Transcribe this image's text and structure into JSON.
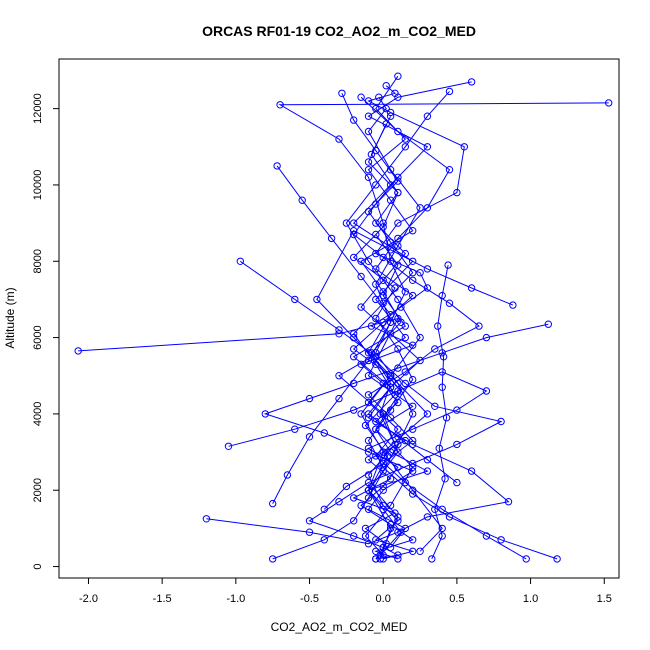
{
  "chart_data": {
    "type": "line",
    "title": "ORCAS RF01-19 CO2_AO2_m_CO2_MED",
    "xlabel": "CO2_AO2_m_CO2_MED",
    "ylabel": "Altitude (m)",
    "xlim": [
      -2.2,
      1.6
    ],
    "ylim": [
      -300,
      13300
    ],
    "x_ticks": [
      -2.0,
      -1.5,
      -1.0,
      -0.5,
      0.0,
      0.5,
      1.0,
      1.5
    ],
    "x_tick_labels": [
      "-2.0",
      "-1.5",
      "-1.0",
      "-0.5",
      "0.0",
      "0.5",
      "1.0",
      "1.5"
    ],
    "y_ticks": [
      0,
      2000,
      4000,
      6000,
      8000,
      10000,
      12000
    ],
    "y_tick_labels": [
      "0",
      "2000",
      "4000",
      "6000",
      "8000",
      "10000",
      "12000"
    ],
    "marker": "open-circle",
    "color": "#0000ff",
    "grid": false,
    "legend": "none",
    "series": [
      {
        "x": [
          -0.05,
          0.02,
          -0.12,
          0.08,
          -0.2,
          0.05,
          -0.1,
          0.15,
          -0.05,
          0.1,
          0.0,
          -0.15,
          0.2,
          -0.08,
          0.12,
          0.3,
          0.25,
          -0.05,
          0.1,
          0.5,
          0.55,
          0.05,
          -0.1,
          0.08,
          0.02
        ],
        "y": [
          200,
          600,
          1000,
          1400,
          1800,
          2300,
          2800,
          3300,
          3800,
          4300,
          4800,
          5300,
          5800,
          6300,
          6800,
          7300,
          7700,
          8200,
          9000,
          9800,
          11000,
          11900,
          12200,
          12400,
          12600
        ]
      },
      {
        "x": [
          0.6,
          0.1,
          -0.1,
          0.3,
          0.05,
          -0.2,
          0.2,
          -0.05,
          0.15,
          -0.3,
          0.0,
          0.1,
          -0.1,
          0.05,
          -0.02
        ],
        "y": [
          12700,
          12300,
          11800,
          11000,
          10000,
          9000,
          8000,
          7000,
          6000,
          5000,
          4000,
          3000,
          2000,
          1000,
          200
        ]
      },
      {
        "x": [
          -0.75,
          -0.4,
          -0.2,
          -0.1,
          0.0,
          0.1,
          0.2,
          0.1,
          -0.05,
          0.05,
          0.15,
          0.05,
          0.0,
          -0.1,
          -0.3,
          -0.7,
          1.53
        ],
        "y": [
          200,
          700,
          1200,
          1800,
          2500,
          3200,
          4000,
          4800,
          5600,
          6400,
          7200,
          8000,
          9000,
          10200,
          11200,
          12100,
          12150
        ]
      },
      {
        "x": [
          1.18,
          0.8,
          0.45,
          0.2,
          0.0,
          -0.1,
          0.05,
          0.2,
          0.1,
          -0.05,
          0.08,
          -0.2,
          0.0,
          0.1,
          -0.08,
          0.05
        ],
        "y": [
          200,
          700,
          1300,
          1900,
          2600,
          3300,
          4100,
          4900,
          5700,
          6500,
          7300,
          8100,
          8900,
          9800,
          10800,
          11800
        ]
      },
      {
        "x": [
          -2.07,
          -0.3,
          0.1,
          -0.1,
          0.2,
          -0.05,
          0.05,
          0.3,
          -0.1,
          0.0,
          0.12,
          -0.02
        ],
        "y": [
          5650,
          6100,
          6500,
          5000,
          4200,
          3600,
          3000,
          2500,
          2000,
          1500,
          900,
          300
        ]
      },
      {
        "x": [
          -1.2,
          -0.5,
          -0.1,
          0.1,
          0.3,
          0.85,
          0.6,
          0.2,
          -0.1,
          0.05,
          -0.2,
          0.15,
          0.0,
          0.1,
          -0.05
        ],
        "y": [
          1250,
          900,
          600,
          900,
          1300,
          1700,
          2500,
          3200,
          3900,
          4700,
          5500,
          6300,
          7100,
          7900,
          8700
        ]
      },
      {
        "x": [
          -1.05,
          -0.6,
          -0.2,
          0.1,
          0.4,
          0.7,
          0.5,
          0.2,
          -0.1,
          0.1,
          0.0,
          -0.15,
          0.05,
          0.2,
          -0.05,
          0.1
        ],
        "y": [
          3150,
          3600,
          4100,
          4600,
          5100,
          4600,
          4100,
          3600,
          3100,
          2600,
          2100,
          1600,
          1100,
          700,
          400,
          200
        ]
      },
      {
        "x": [
          -0.97,
          -0.6,
          -0.3,
          -0.05,
          0.15,
          0.35,
          0.8,
          0.5,
          0.2,
          -0.1,
          -0.3,
          -0.5,
          -0.2,
          0.0,
          0.1,
          -0.05
        ],
        "y": [
          8000,
          7000,
          6200,
          5500,
          4800,
          4200,
          3800,
          3200,
          2700,
          2200,
          1700,
          1200,
          800,
          500,
          300,
          200
        ]
      },
      {
        "x": [
          1.12,
          0.7,
          0.4,
          0.1,
          -0.2,
          -0.5,
          -0.8,
          -0.4,
          -0.1,
          0.2,
          0.0,
          -0.1,
          0.15,
          0.05
        ],
        "y": [
          6350,
          6000,
          5600,
          5200,
          4800,
          4400,
          4000,
          3500,
          3000,
          2500,
          2000,
          1500,
          1000,
          500
        ]
      },
      {
        "x": [
          0.97,
          0.7,
          0.4,
          0.15,
          -0.05,
          0.1,
          -0.1,
          0.05,
          -0.2,
          0.0,
          0.2,
          -0.05,
          0.1,
          0.3,
          0.45,
          0.1,
          -0.15
        ],
        "y": [
          200,
          800,
          1500,
          2200,
          2900,
          3600,
          4300,
          5000,
          5700,
          6400,
          7100,
          7800,
          8600,
          9400,
          10400,
          11400,
          12300
        ]
      },
      {
        "x": [
          0.88,
          0.6,
          0.3,
          0.05,
          -0.2,
          -0.45,
          -0.2,
          0.05,
          0.3,
          0.0,
          -0.1,
          0.1,
          -0.05,
          0.2,
          0.0
        ],
        "y": [
          6850,
          7300,
          7800,
          8300,
          8800,
          7000,
          6000,
          5000,
          4000,
          3000,
          2000,
          1200,
          700,
          400,
          200
        ]
      },
      {
        "x": [
          -0.75,
          -0.65,
          -0.5,
          -0.3,
          -0.1,
          0.05,
          -0.05,
          0.1,
          0.25,
          0.05,
          -0.1,
          0.02,
          -0.03
        ],
        "y": [
          1650,
          2400,
          3400,
          4400,
          5400,
          6400,
          7400,
          8400,
          9400,
          10400,
          11400,
          12000,
          12300
        ]
      },
      {
        "x": [
          0.33,
          0.4,
          0.35,
          0.42,
          0.38,
          0.43,
          0.4,
          0.41,
          0.37,
          0.4,
          0.44
        ],
        "y": [
          200,
          800,
          1500,
          2300,
          3100,
          3900,
          4700,
          5500,
          6300,
          7100,
          7900
        ]
      },
      {
        "x": [
          -0.72,
          -0.55,
          -0.35,
          -0.15,
          0.05,
          -0.1,
          0.12,
          -0.05,
          0.2,
          0.05,
          -0.12,
          0.0
        ],
        "y": [
          10500,
          9600,
          8600,
          7600,
          6600,
          5600,
          4600,
          3600,
          2600,
          1600,
          800,
          300
        ]
      },
      {
        "x": [
          0.5,
          0.3,
          0.1,
          -0.1,
          0.05,
          0.25,
          0.05,
          -0.15,
          0.0,
          0.15,
          -0.05,
          0.1,
          -0.1,
          0.02
        ],
        "y": [
          2200,
          2800,
          3400,
          4000,
          4700,
          5400,
          6100,
          6800,
          7500,
          8200,
          9000,
          9800,
          10600,
          11600
        ]
      },
      {
        "x": [
          -0.4,
          -0.25,
          0.0,
          0.2,
          0.05,
          -0.1,
          0.15,
          0.35,
          0.65,
          0.45,
          0.2,
          0.0,
          -0.2,
          -0.05,
          0.1
        ],
        "y": [
          1500,
          2100,
          2700,
          3300,
          3900,
          4500,
          5100,
          5700,
          6300,
          6900,
          7500,
          8100,
          8700,
          9500,
          10200
        ]
      },
      {
        "x": [
          0.45,
          0.3,
          0.15,
          -0.05,
          -0.25,
          -0.1,
          0.1,
          0.25,
          0.05,
          -0.15,
          0.0,
          0.2,
          0.4,
          0.25
        ],
        "y": [
          12450,
          11800,
          11000,
          10000,
          9000,
          8000,
          7000,
          6000,
          5000,
          4000,
          3000,
          2000,
          1000,
          400
        ]
      },
      {
        "x": [
          -0.28,
          -0.2,
          -0.05,
          0.1,
          -0.1,
          0.05,
          0.2,
          0.0,
          -0.2,
          -0.05,
          0.08,
          -0.12,
          0.03,
          -0.08,
          0.1,
          0.0
        ],
        "y": [
          12400,
          11700,
          10900,
          10100,
          9300,
          8500,
          7700,
          6900,
          6100,
          5300,
          4500,
          3700,
          2900,
          2100,
          1300,
          500
        ]
      },
      {
        "x": [
          0.1,
          -0.05,
          0.15,
          -0.1,
          0.05,
          0.2,
          -0.15,
          0.0,
          0.12,
          -0.08,
          0.05,
          -0.02,
          0.08,
          -0.1,
          0.0
        ],
        "y": [
          12850,
          12000,
          11200,
          10400,
          9600,
          8800,
          8000,
          7200,
          6400,
          5600,
          4800,
          4000,
          3200,
          2400,
          1600
        ]
      }
    ]
  }
}
